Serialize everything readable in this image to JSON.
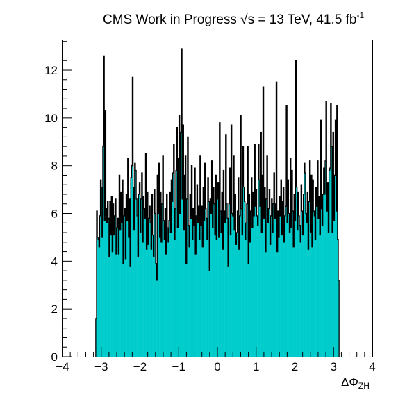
{
  "chart_data": {
    "type": "bar",
    "title": {
      "prefix": "CMS Work in Progress ",
      "sqrt": "√s",
      "middle": " = 13 TeV, 41.5 fb",
      "superscript": "-1"
    },
    "xlabel": {
      "main": "ΔΦ",
      "sub": "ZH"
    },
    "xlim": [
      -4,
      4
    ],
    "ylim": [
      0,
      13.25
    ],
    "x_ticks": [
      -4,
      -3,
      -2,
      -1,
      0,
      1,
      2,
      3,
      4
    ],
    "y_ticks": [
      0,
      2,
      4,
      6,
      8,
      10,
      12
    ],
    "bins": {
      "start": -3.14159,
      "end": 3.14159,
      "count": 314
    },
    "grid": false,
    "colors": {
      "fill": "#00cccc",
      "outline": "#000000",
      "axes": "#000000"
    },
    "series": [
      {
        "values": [
          1.6,
          6.1,
          5.0,
          4.9,
          4.6,
          5.9,
          7.4,
          7.1,
          5.0,
          8.8,
          12.6,
          5.7,
          10.3,
          6.2,
          5.6,
          6.5,
          5.8,
          4.2,
          6.5,
          5.1,
          6.7,
          4.4,
          6.4,
          5.1,
          5.9,
          6.6,
          4.3,
          5.4,
          5.8,
          4.3,
          7.6,
          5.3,
          6.9,
          5.6,
          7.4,
          3.9,
          5.9,
          6.2,
          4.1,
          6.8,
          5.7,
          8.3,
          5.0,
          6.6,
          3.8,
          7.5,
          8.0,
          11.7,
          7.1,
          5.3,
          8.1,
          7.8,
          6.6,
          5.9,
          4.2,
          6.8,
          7.3,
          5.2,
          6.6,
          7.7,
          4.8,
          6.7,
          6.2,
          5.8,
          8.5,
          4.5,
          6.9,
          4.7,
          5.8,
          6.3,
          5.6,
          4.5,
          6.8,
          5.1,
          4.2,
          7.0,
          6.0,
          3.9,
          3.2,
          7.6,
          6.0,
          8.1,
          5.0,
          6.9,
          4.8,
          6.4,
          8.4,
          5.7,
          4.9,
          6.2,
          4.3,
          6.8,
          5.4,
          4.8,
          5.7,
          6.9,
          5.2,
          7.4,
          6.5,
          7.7,
          8.9,
          4.9,
          6.2,
          7.8,
          9.6,
          5.4,
          8.3,
          10.1,
          6.0,
          9.4,
          12.9,
          6.6,
          9.7,
          5.3,
          7.6,
          8.4,
          3.9,
          6.6,
          9.2,
          5.5,
          4.6,
          6.8,
          5.8,
          8.0,
          4.9,
          6.2,
          5.5,
          7.9,
          4.3,
          5.9,
          7.2,
          5.6,
          6.3,
          4.9,
          8.4,
          5.5,
          6.3,
          4.6,
          7.1,
          5.7,
          8.1,
          6.2,
          5.8,
          4.9,
          7.5,
          6.5,
          3.6,
          6.6,
          6.0,
          8.2,
          5.4,
          7.1,
          6.4,
          5.1,
          7.6,
          4.9,
          6.6,
          7.3,
          5.0,
          9.8,
          6.1,
          5.2,
          6.9,
          4.5,
          7.8,
          6.1,
          5.6,
          9.3,
          6.4,
          5.8,
          3.8,
          6.4,
          7.9,
          5.1,
          9.7,
          6.0,
          5.9,
          8.4,
          5.3,
          6.8,
          4.7,
          5.2,
          6.1,
          7.5,
          4.5,
          5.9,
          10.1,
          6.2,
          5.1,
          8.8,
          7.1,
          6.5,
          4.9,
          5.6,
          6.4,
          8.8,
          3.9,
          6.8,
          4.8,
          6.1,
          7.5,
          5.4,
          6.9,
          5.9,
          8.9,
          6.3,
          7.0,
          5.9,
          5.5,
          8.9,
          7.4,
          6.3,
          9.4,
          5.2,
          7.6,
          11.3,
          5.8,
          7.1,
          4.4,
          6.6,
          8.4,
          5.6,
          6.2,
          7.0,
          4.7,
          5.9,
          6.6,
          5.2,
          6.4,
          7.7,
          5.8,
          6.4,
          11.5,
          4.4,
          6.1,
          5.0,
          6.7,
          5.9,
          7.4,
          5.1,
          6.5,
          7.1,
          4.8,
          5.9,
          6.3,
          10.5,
          5.6,
          7.4,
          6.0,
          5.2,
          8.3,
          5.4,
          7.8,
          6.1,
          4.6,
          6.8,
          5.7,
          12.4,
          7.1,
          5.3,
          6.9,
          5.9,
          5.5,
          4.8,
          7.2,
          6.1,
          5.1,
          6.8,
          8.1,
          7.7,
          6.0,
          5.6,
          6.9,
          4.5,
          6.5,
          8.2,
          5.2,
          7.6,
          4.6,
          7.4,
          6.1,
          5.9,
          4.9,
          7.1,
          6.3,
          8.2,
          5.8,
          6.7,
          5.1,
          9.9,
          6.2,
          5.5,
          6.8,
          7.9,
          6.8,
          8.2,
          10.7,
          6.1,
          7.3,
          5.2,
          7.8,
          7.9,
          10.6,
          8.8,
          5.2,
          9.4,
          5.7,
          7.6,
          9.9,
          6.1,
          10.5,
          4.9,
          3.2
        ]
      }
    ]
  }
}
